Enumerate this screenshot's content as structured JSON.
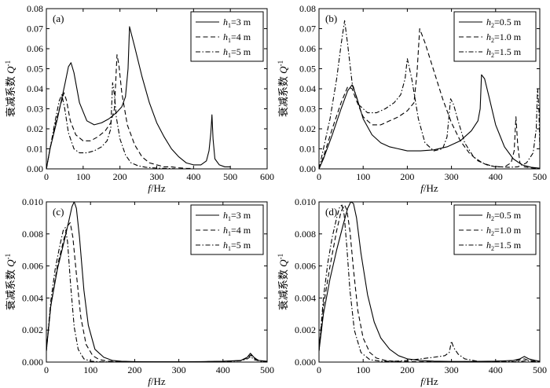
{
  "chart_data": [
    {
      "type": "line",
      "panel_label": "(a)",
      "xlabel_italic": "f",
      "xlabel_unit": "/Hz",
      "ylabel_cn": "衰减系数",
      "ylabel_sym": "Q",
      "ylabel_sup": "-1",
      "xlim": [
        0,
        600
      ],
      "ylim": [
        0,
        0.08
      ],
      "xticks": [
        0,
        100,
        200,
        300,
        400,
        500,
        600
      ],
      "xtick_labels": [
        "0",
        "100",
        "200",
        "300",
        "400",
        "500",
        "600"
      ],
      "yticks": [
        0,
        0.01,
        0.02,
        0.03,
        0.04,
        0.05,
        0.06,
        0.07,
        0.08
      ],
      "ytick_labels": [
        "0.00",
        "0.01",
        "0.02",
        "0.03",
        "0.04",
        "0.05",
        "0.06",
        "0.07",
        "0.08"
      ],
      "legend_position": "top-right",
      "series": [
        {
          "name": "h1=3 m",
          "sym": "h",
          "sub": "1",
          "rest": "=3 m",
          "dash": "solid",
          "x": [
            0,
            10,
            30,
            50,
            60,
            67,
            75,
            90,
            110,
            130,
            150,
            170,
            190,
            205,
            215,
            222,
            226,
            240,
            260,
            280,
            300,
            320,
            340,
            360,
            380,
            400,
            420,
            435,
            442,
            447,
            450,
            453,
            458,
            470,
            485,
            500
          ],
          "values": [
            0.0,
            0.01,
            0.025,
            0.042,
            0.051,
            0.053,
            0.048,
            0.033,
            0.024,
            0.022,
            0.023,
            0.025,
            0.028,
            0.031,
            0.036,
            0.05,
            0.071,
            0.061,
            0.046,
            0.033,
            0.023,
            0.016,
            0.01,
            0.006,
            0.003,
            0.002,
            0.002,
            0.004,
            0.009,
            0.018,
            0.027,
            0.015,
            0.005,
            0.002,
            0.001,
            0.001
          ]
        },
        {
          "name": "h1=4 m",
          "sym": "h",
          "sub": "1",
          "rest": "=4 m",
          "dash": "dashed",
          "x": [
            0,
            10,
            25,
            40,
            48,
            55,
            65,
            80,
            100,
            120,
            140,
            160,
            175,
            185,
            192,
            197,
            205,
            220,
            240,
            260,
            280,
            300,
            320,
            340,
            360,
            380,
            400
          ],
          "values": [
            0.0,
            0.01,
            0.023,
            0.033,
            0.038,
            0.034,
            0.024,
            0.017,
            0.014,
            0.014,
            0.016,
            0.019,
            0.023,
            0.03,
            0.057,
            0.052,
            0.038,
            0.022,
            0.012,
            0.006,
            0.003,
            0.002,
            0.001,
            0.001,
            0.0005,
            0.0003,
            0.0002
          ]
        },
        {
          "name": "h1=5 m",
          "sym": "h",
          "sub": "1",
          "rest": "=5 m",
          "dash": "dashdot",
          "x": [
            0,
            10,
            25,
            35,
            42,
            50,
            60,
            75,
            90,
            110,
            130,
            150,
            165,
            175,
            180,
            185,
            190,
            200,
            215,
            230,
            250,
            270,
            290,
            310,
            330,
            350
          ],
          "values": [
            0.0,
            0.01,
            0.025,
            0.034,
            0.037,
            0.03,
            0.018,
            0.01,
            0.008,
            0.008,
            0.009,
            0.011,
            0.014,
            0.02,
            0.043,
            0.037,
            0.026,
            0.015,
            0.007,
            0.003,
            0.0015,
            0.0008,
            0.0005,
            0.0003,
            0.0002,
            0.0001
          ]
        }
      ]
    },
    {
      "type": "line",
      "panel_label": "(b)",
      "xlabel_italic": "f",
      "xlabel_unit": "/Hz",
      "ylabel_cn": "衰减系数",
      "ylabel_sym": "Q",
      "ylabel_sup": "-1",
      "xlim": [
        0,
        500
      ],
      "ylim": [
        0,
        0.08
      ],
      "xticks": [
        0,
        100,
        200,
        300,
        400,
        500
      ],
      "xtick_labels": [
        "0",
        "100",
        "200",
        "300",
        "400",
        "500"
      ],
      "yticks": [
        0,
        0.01,
        0.02,
        0.03,
        0.04,
        0.05,
        0.06,
        0.07,
        0.08
      ],
      "ytick_labels": [
        "0.00",
        "0.01",
        "0.02",
        "0.03",
        "0.04",
        "0.05",
        "0.06",
        "0.07",
        "0.08"
      ],
      "legend_position": "top-right",
      "series": [
        {
          "name": "h2=0.5 m",
          "sym": "h",
          "sub": "2",
          "rest": "=0.5 m",
          "dash": "solid",
          "x": [
            0,
            10,
            30,
            50,
            65,
            75,
            85,
            100,
            120,
            140,
            160,
            180,
            200,
            230,
            260,
            290,
            320,
            345,
            360,
            365,
            368,
            375,
            385,
            400,
            420,
            440,
            460,
            480,
            500
          ],
          "values": [
            0.0,
            0.005,
            0.017,
            0.03,
            0.039,
            0.042,
            0.036,
            0.025,
            0.017,
            0.013,
            0.011,
            0.01,
            0.009,
            0.009,
            0.0095,
            0.011,
            0.014,
            0.019,
            0.024,
            0.03,
            0.047,
            0.045,
            0.036,
            0.022,
            0.011,
            0.005,
            0.002,
            0.0008,
            0.0003
          ]
        },
        {
          "name": "h2=1.0 m",
          "sym": "h",
          "sub": "2",
          "rest": "=1.0 m",
          "dash": "dashed",
          "x": [
            0,
            10,
            30,
            50,
            65,
            75,
            85,
            100,
            120,
            140,
            160,
            180,
            200,
            215,
            222,
            228,
            240,
            260,
            280,
            300,
            320,
            340,
            360,
            380,
            400,
            420,
            435,
            442,
            446,
            450,
            455,
            465,
            480,
            500
          ],
          "values": [
            0.0,
            0.006,
            0.02,
            0.033,
            0.041,
            0.04,
            0.034,
            0.026,
            0.022,
            0.022,
            0.024,
            0.026,
            0.029,
            0.033,
            0.048,
            0.07,
            0.063,
            0.049,
            0.035,
            0.023,
            0.014,
            0.008,
            0.004,
            0.002,
            0.001,
            0.001,
            0.003,
            0.009,
            0.026,
            0.012,
            0.003,
            0.001,
            0.0005,
            0.0002
          ]
        },
        {
          "name": "h2=1.5 m",
          "sym": "h",
          "sub": "2",
          "rest": "=1.5 m",
          "dash": "dashdot",
          "x": [
            0,
            10,
            25,
            40,
            50,
            58,
            65,
            75,
            90,
            110,
            130,
            150,
            170,
            185,
            195,
            200,
            210,
            225,
            240,
            260,
            280,
            290,
            298,
            305,
            315,
            330,
            350,
            370,
            390,
            410,
            430,
            450,
            470,
            485,
            492,
            495,
            498,
            500
          ],
          "values": [
            0.0,
            0.01,
            0.025,
            0.045,
            0.062,
            0.074,
            0.062,
            0.043,
            0.032,
            0.028,
            0.028,
            0.03,
            0.033,
            0.037,
            0.045,
            0.055,
            0.045,
            0.025,
            0.013,
            0.009,
            0.01,
            0.016,
            0.035,
            0.032,
            0.024,
            0.013,
            0.006,
            0.003,
            0.0015,
            0.001,
            0.0008,
            0.001,
            0.003,
            0.008,
            0.02,
            0.04,
            0.03,
            0.01
          ]
        }
      ]
    },
    {
      "type": "line",
      "panel_label": "(c)",
      "xlabel_italic": "f",
      "xlabel_unit": "/Hz",
      "ylabel_cn": "衰减系数",
      "ylabel_sym": "Q",
      "ylabel_sup": "-1",
      "xlim": [
        0,
        500
      ],
      "ylim": [
        0,
        0.01
      ],
      "xticks": [
        0,
        100,
        200,
        300,
        400,
        500
      ],
      "xtick_labels": [
        "0",
        "100",
        "200",
        "300",
        "400",
        "500"
      ],
      "yticks": [
        0,
        0.002,
        0.004,
        0.006,
        0.008,
        0.01
      ],
      "ytick_labels": [
        "0.000",
        "0.002",
        "0.004",
        "0.006",
        "0.008",
        "0.010"
      ],
      "legend_position": "top-right",
      "series": [
        {
          "name": "h1=3 m",
          "sym": "h",
          "sub": "1",
          "rest": "=3 m",
          "dash": "solid",
          "x": [
            0,
            10,
            25,
            40,
            50,
            58,
            63,
            68,
            75,
            85,
            95,
            110,
            130,
            150,
            170,
            200,
            250,
            300,
            350,
            400,
            440,
            455,
            462,
            470,
            480,
            500
          ],
          "values": [
            0.0007,
            0.0035,
            0.0058,
            0.0075,
            0.0087,
            0.0097,
            0.01,
            0.0096,
            0.0078,
            0.0045,
            0.0023,
            0.0008,
            0.0003,
            0.0001,
            5e-05,
            3e-05,
            2e-05,
            2e-05,
            3e-05,
            5e-05,
            0.0001,
            0.0003,
            0.00055,
            0.0003,
            0.0001,
            5e-05
          ]
        },
        {
          "name": "h1=4 m",
          "sym": "h",
          "sub": "1",
          "rest": "=4 m",
          "dash": "dashed",
          "x": [
            0,
            10,
            25,
            40,
            48,
            54,
            60,
            68,
            78,
            90,
            105,
            120,
            140,
            170,
            200,
            250,
            300,
            350,
            400,
            440,
            455,
            463,
            472,
            485,
            500
          ],
          "values": [
            0.0007,
            0.0035,
            0.006,
            0.0077,
            0.0085,
            0.0087,
            0.0078,
            0.0055,
            0.0028,
            0.0011,
            0.0004,
            0.00015,
            6e-05,
            3e-05,
            2e-05,
            1e-05,
            1e-05,
            2e-05,
            4e-05,
            0.0001,
            0.00025,
            0.00045,
            0.0002,
            8e-05,
            4e-05
          ]
        },
        {
          "name": "h1=5 m",
          "sym": "h",
          "sub": "1",
          "rest": "=5 m",
          "dash": "dashdot",
          "x": [
            0,
            10,
            20,
            30,
            38,
            43,
            48,
            55,
            63,
            72,
            85,
            100,
            120,
            150,
            200,
            250,
            300,
            350,
            400,
            440,
            455,
            463,
            470,
            485,
            500
          ],
          "values": [
            0.0007,
            0.0038,
            0.0058,
            0.0072,
            0.0082,
            0.0084,
            0.0075,
            0.0048,
            0.0022,
            0.0008,
            0.0002,
            6e-05,
            2e-05,
            1e-05,
            5e-06,
            5e-06,
            1e-05,
            2e-05,
            4e-05,
            8e-05,
            0.0002,
            0.00035,
            0.00015,
            5e-05,
            2e-05
          ]
        }
      ]
    },
    {
      "type": "line",
      "panel_label": "(d)",
      "xlabel_italic": "f",
      "xlabel_unit": "/Hz",
      "ylabel_cn": "衰减系数",
      "ylabel_sym": "Q",
      "ylabel_sup": "-1",
      "xlim": [
        0,
        500
      ],
      "ylim": [
        0,
        0.01
      ],
      "xticks": [
        0,
        100,
        200,
        300,
        400,
        500
      ],
      "xtick_labels": [
        "0",
        "100",
        "200",
        "300",
        "400",
        "500"
      ],
      "yticks": [
        0,
        0.002,
        0.004,
        0.006,
        0.008,
        0.01
      ],
      "ytick_labels": [
        "0.000",
        "0.002",
        "0.004",
        "0.006",
        "0.008",
        "0.010"
      ],
      "legend_position": "top-right",
      "series": [
        {
          "name": "h2=0.5 m",
          "sym": "h",
          "sub": "2",
          "rest": "=0.5 m",
          "dash": "solid",
          "x": [
            0,
            10,
            25,
            40,
            55,
            65,
            72,
            78,
            85,
            95,
            110,
            125,
            140,
            160,
            180,
            200,
            230,
            260,
            300,
            350,
            400,
            440,
            455,
            465,
            475,
            490,
            500
          ],
          "values": [
            0.0007,
            0.003,
            0.0052,
            0.007,
            0.0086,
            0.0096,
            0.01,
            0.0099,
            0.009,
            0.0068,
            0.0042,
            0.0025,
            0.0015,
            0.0008,
            0.0004,
            0.0002,
            0.0001,
            6e-05,
            4e-05,
            4e-05,
            6e-05,
            0.0001,
            0.0002,
            0.00035,
            0.0002,
            0.0001,
            5e-05
          ]
        },
        {
          "name": "h2=1.0 m",
          "sym": "h",
          "sub": "2",
          "rest": "=1.0 m",
          "dash": "dashed",
          "x": [
            0,
            10,
            25,
            40,
            50,
            58,
            63,
            70,
            78,
            88,
            100,
            115,
            130,
            150,
            170,
            200,
            250,
            300,
            350,
            400,
            450,
            465,
            475,
            490,
            500
          ],
          "values": [
            0.0007,
            0.0035,
            0.006,
            0.0082,
            0.0094,
            0.0098,
            0.0095,
            0.0082,
            0.0058,
            0.0032,
            0.0015,
            0.0006,
            0.00025,
            0.0001,
            5e-05,
            3e-05,
            2e-05,
            2e-05,
            3e-05,
            5e-05,
            0.0001,
            0.0002,
            0.0001,
            5e-05,
            3e-05
          ]
        },
        {
          "name": "h2=1.5 m",
          "sym": "h",
          "sub": "2",
          "rest": "=1.5 m",
          "dash": "dashdot",
          "x": [
            0,
            10,
            20,
            30,
            40,
            47,
            52,
            57,
            63,
            70,
            80,
            95,
            115,
            140,
            170,
            200,
            230,
            260,
            285,
            295,
            300,
            305,
            315,
            330,
            360,
            400,
            440,
            460,
            470,
            480,
            500
          ],
          "values": [
            0.0007,
            0.004,
            0.0062,
            0.0078,
            0.009,
            0.0097,
            0.0098,
            0.0092,
            0.0072,
            0.0045,
            0.002,
            0.0006,
            0.00015,
            5e-05,
            5e-05,
            0.0001,
            0.0002,
            0.0003,
            0.0004,
            0.0006,
            0.0013,
            0.0009,
            0.0005,
            0.0002,
            5e-05,
            2e-05,
            2e-05,
            5e-05,
            0.0001,
            5e-05,
            2e-05
          ]
        }
      ]
    }
  ]
}
